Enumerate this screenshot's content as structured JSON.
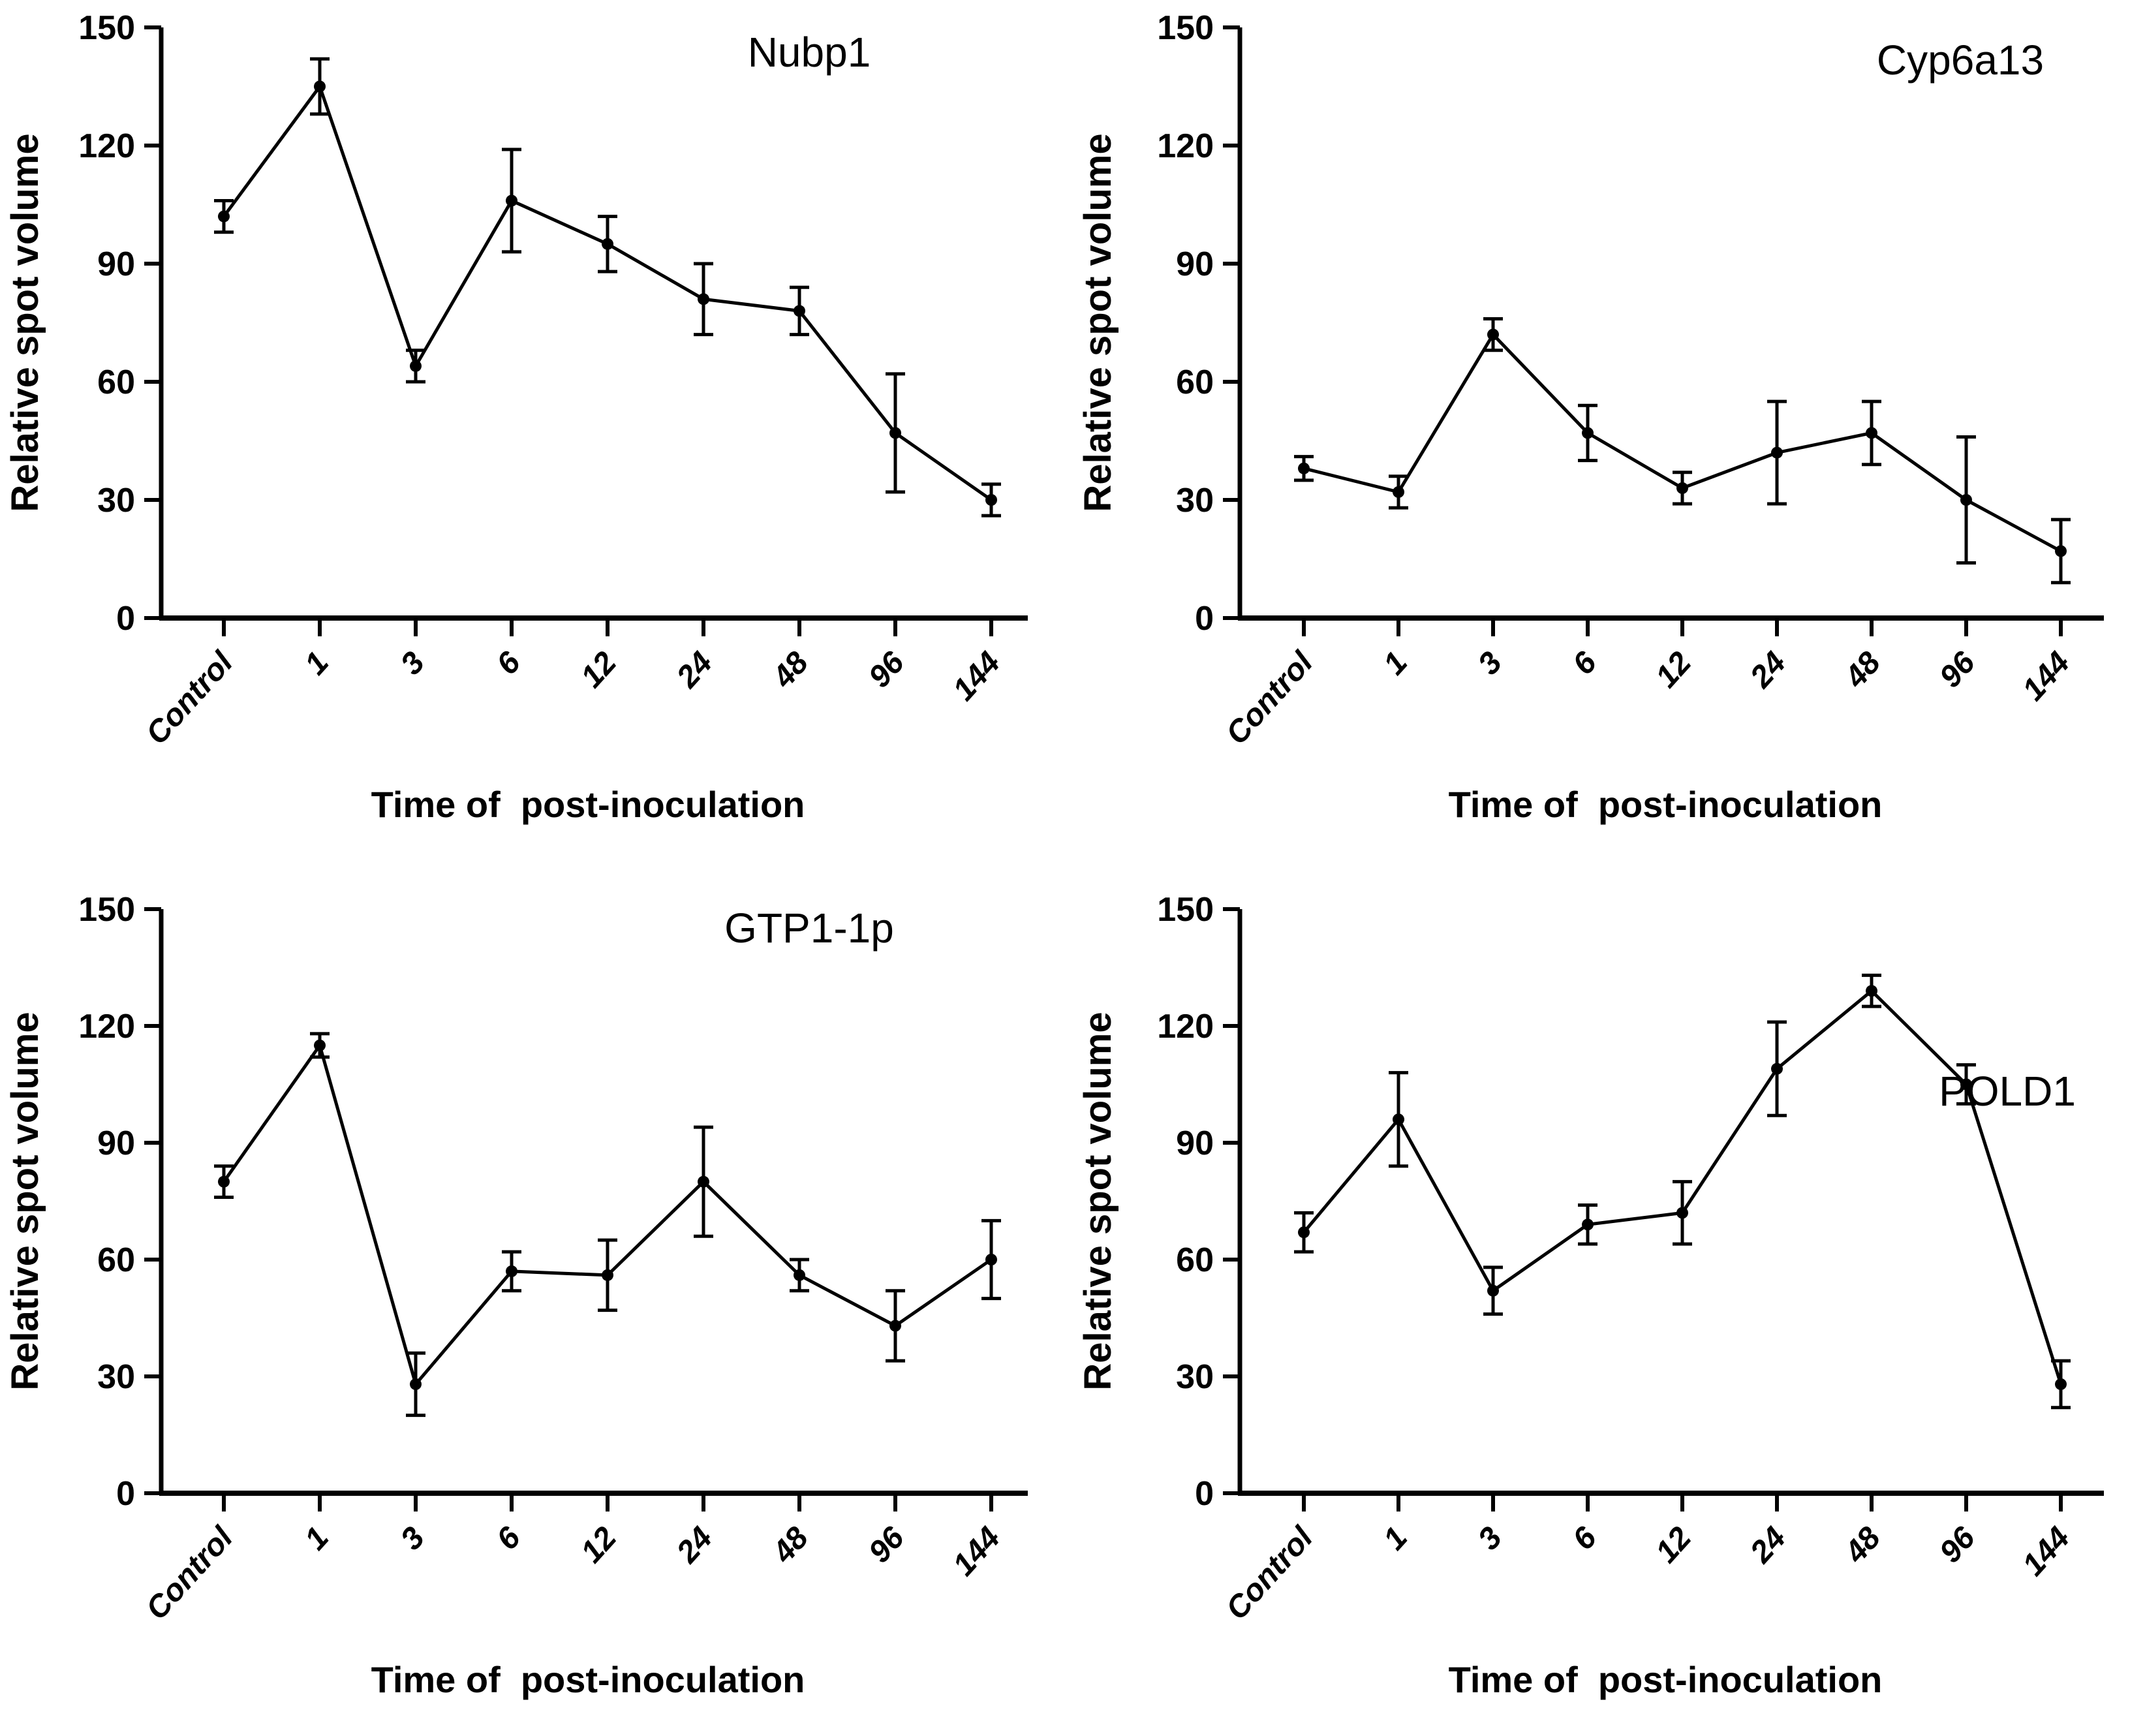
{
  "figure": {
    "background": "#ffffff",
    "ink": "#000000",
    "ylabel": "Relative spot volume",
    "xlabel": "Time of  post-inoculation",
    "categories": [
      "Control",
      "1",
      "3",
      "6",
      "12",
      "24",
      "48",
      "96",
      "144"
    ],
    "yticks": [
      0,
      30,
      60,
      90,
      120,
      150
    ],
    "ylim": [
      0,
      150
    ],
    "grid": "off",
    "legend": "none",
    "marker": "filled-circle",
    "error_bars": "symmetric, capped"
  },
  "chart_data": [
    {
      "type": "line",
      "title": "Nubp1",
      "xlabel": "Time of  post-inoculation",
      "ylabel": "Relative spot volume",
      "categories": [
        "Control",
        "1",
        "3",
        "6",
        "12",
        "24",
        "48",
        "96",
        "144"
      ],
      "values": [
        102,
        135,
        64,
        106,
        95,
        81,
        78,
        47,
        30
      ],
      "errors": [
        4,
        7,
        4,
        13,
        7,
        9,
        6,
        15,
        4
      ],
      "ylim": [
        0,
        150
      ],
      "title_anchor": [
        1240,
        80
      ]
    },
    {
      "type": "line",
      "title": "Cyp6a13",
      "xlabel": "Time of  post-inoculation",
      "ylabel": "Relative spot volume",
      "categories": [
        "Control",
        "1",
        "3",
        "6",
        "12",
        "24",
        "48",
        "96",
        "144"
      ],
      "values": [
        38,
        32,
        72,
        47,
        33,
        42,
        47,
        30,
        17
      ],
      "errors": [
        3,
        4,
        4,
        7,
        4,
        13,
        8,
        16,
        8
      ],
      "ylim": [
        0,
        150
      ],
      "title_anchor": [
        1360,
        92
      ]
    },
    {
      "type": "line",
      "title": "GTP1-1p",
      "xlabel": "Time of  post-inoculation",
      "ylabel": "Relative spot volume",
      "categories": [
        "Control",
        "1",
        "3",
        "6",
        "12",
        "24",
        "48",
        "96",
        "144"
      ],
      "values": [
        80,
        115,
        28,
        57,
        56,
        80,
        56,
        43,
        60
      ],
      "errors": [
        4,
        3,
        8,
        5,
        9,
        14,
        4,
        9,
        10
      ],
      "ylim": [
        0,
        150
      ],
      "title_anchor": [
        1240,
        92
      ]
    },
    {
      "type": "line",
      "title": "POLD1",
      "xlabel": "Time of  post-inoculation",
      "ylabel": "Relative spot volume",
      "categories": [
        "Control",
        "1",
        "3",
        "6",
        "12",
        "24",
        "48",
        "96",
        "144"
      ],
      "values": [
        67,
        96,
        52,
        69,
        72,
        109,
        129,
        105,
        28
      ],
      "errors": [
        5,
        12,
        6,
        5,
        8,
        12,
        4,
        5,
        6
      ],
      "ylim": [
        0,
        150
      ],
      "title_anchor": [
        1432,
        342
      ]
    }
  ]
}
